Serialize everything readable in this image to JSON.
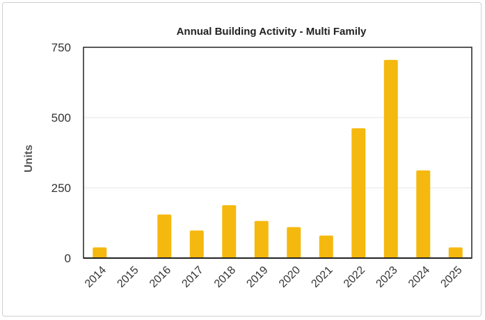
{
  "chart_data": {
    "type": "bar",
    "title": "Annual Building Activity - Multi Family",
    "xlabel": "",
    "ylabel": "Units",
    "categories": [
      "2014",
      "2015",
      "2016",
      "2017",
      "2018",
      "2019",
      "2020",
      "2021",
      "2022",
      "2023",
      "2024",
      "2025"
    ],
    "values": [
      38,
      2,
      155,
      98,
      188,
      132,
      110,
      80,
      462,
      705,
      312,
      38
    ],
    "ylim": [
      0,
      750
    ],
    "yticks": [
      "0",
      "250",
      "500",
      "750"
    ],
    "grid": true,
    "legend": "none",
    "colors": {
      "bar": "#F5B80E",
      "grid": "#e6e6e6",
      "axis": "#222222",
      "text": "#333333"
    }
  }
}
